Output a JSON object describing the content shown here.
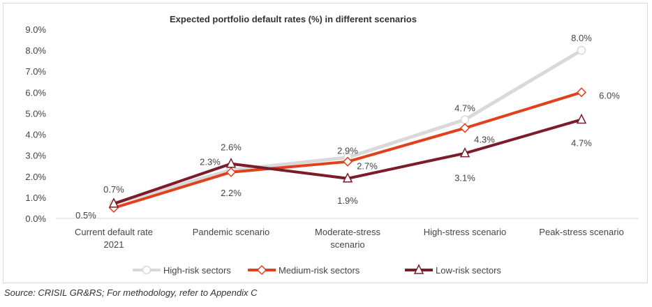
{
  "chart_data": {
    "type": "line",
    "title": "Expected portfolio default rates (%) in different scenarios",
    "categories": [
      "Current default rate 2021",
      "Pandemic scenario",
      "Moderate-stress scenario",
      "High-stress scenario",
      "Peak-stress scenario"
    ],
    "category_lines": [
      [
        "Current default rate",
        "2021"
      ],
      [
        "Pandemic scenario"
      ],
      [
        "Moderate-stress",
        "scenario"
      ],
      [
        "High-stress scenario"
      ],
      [
        "Peak-stress scenario"
      ]
    ],
    "ylim": [
      0,
      9
    ],
    "yticks": [
      "0.0%",
      "1.0%",
      "2.0%",
      "3.0%",
      "4.0%",
      "5.0%",
      "6.0%",
      "7.0%",
      "8.0%",
      "9.0%"
    ],
    "grid": false,
    "legend": "bottom",
    "series": [
      {
        "name": "High-risk sectors",
        "values": [
          0.7,
          2.3,
          2.9,
          4.7,
          8.0
        ],
        "labels": [
          "",
          "2.3%",
          "2.9%",
          "4.7%",
          "8.0%"
        ],
        "color": "#d9d9d9",
        "marker": "circle"
      },
      {
        "name": "Medium-risk sectors",
        "values": [
          0.5,
          2.2,
          2.7,
          4.3,
          6.0
        ],
        "labels": [
          "0.5%",
          "2.2%",
          "2.7%",
          "4.3%",
          "6.0%"
        ],
        "color": "#e0401c",
        "marker": "diamond"
      },
      {
        "name": "Low-risk sectors",
        "values": [
          0.7,
          2.6,
          1.9,
          3.1,
          4.7
        ],
        "labels": [
          "0.7%",
          "2.6%",
          "1.9%",
          "3.1%",
          "4.7%"
        ],
        "color": "#7b1c2a",
        "marker": "triangle"
      }
    ]
  },
  "source": "Source: CRISIL GR&RS; For methodology, refer to Appendix C"
}
